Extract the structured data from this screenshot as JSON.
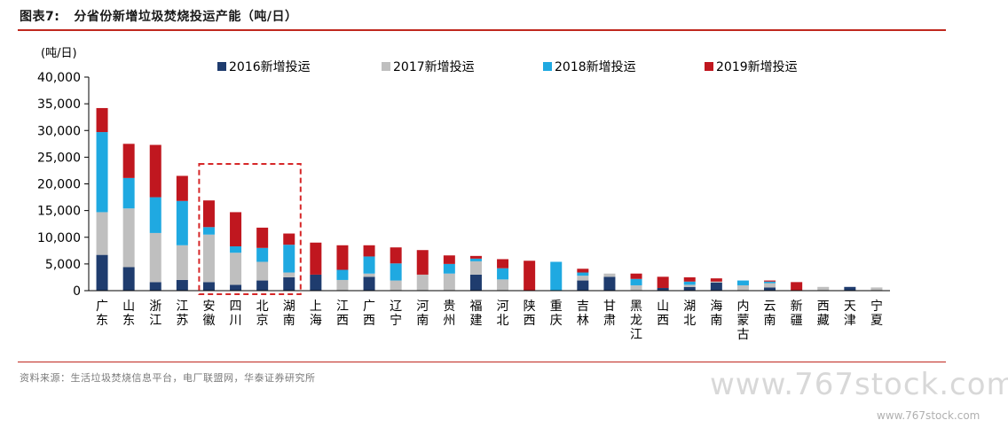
{
  "header": {
    "figure_label": "图表7:",
    "figure_title": "分省份新增垃圾焚烧投运产能（吨/日）"
  },
  "source_text": "资料来源：生活垃圾焚烧信息平台，电厂联盟网，华泰证券研究所",
  "watermark": {
    "main": "www.767stock.com",
    "small": "www.767stock.com"
  },
  "chart_data": {
    "type": "bar",
    "stacked": true,
    "unit_label": "(吨/日)",
    "ylim": [
      0,
      40000
    ],
    "yticks": [
      "0",
      "5,000",
      "10,000",
      "15,000",
      "20,000",
      "25,000",
      "30,000",
      "35,000",
      "40,000"
    ],
    "legend_position": "top",
    "highlight_box": {
      "from_category": "安徽",
      "to_category": "湖南",
      "style": "dashed",
      "color": "#d62728"
    },
    "categories": [
      "广东",
      "山东",
      "浙江",
      "江苏",
      "安徽",
      "四川",
      "北京",
      "湖南",
      "上海",
      "江西",
      "广西",
      "辽宁",
      "河南",
      "贵州",
      "福建",
      "河北",
      "陕西",
      "重庆",
      "吉林",
      "甘肃",
      "黑龙江",
      "山西",
      "湖北",
      "海南",
      "内蒙古",
      "云南",
      "新疆",
      "西藏",
      "天津",
      "宁夏"
    ],
    "series": [
      {
        "name": "2016新增投运",
        "color": "#1f3c6e",
        "values": [
          6700,
          4400,
          1600,
          2000,
          1600,
          1100,
          1900,
          2500,
          3000,
          0,
          2600,
          0,
          0,
          0,
          3000,
          0,
          0,
          0,
          1900,
          2600,
          0,
          500,
          700,
          1500,
          0,
          600,
          0,
          0,
          700,
          0
        ]
      },
      {
        "name": "2017新增投运",
        "color": "#bfbfbf",
        "values": [
          8000,
          11000,
          9200,
          6500,
          8900,
          6000,
          3500,
          900,
          0,
          2000,
          600,
          1900,
          3000,
          3200,
          2500,
          2100,
          0,
          0,
          900,
          600,
          1000,
          0,
          400,
          200,
          1000,
          800,
          0,
          700,
          0,
          600
        ]
      },
      {
        "name": "2018新增投运",
        "color": "#1fa9e1",
        "values": [
          15000,
          5700,
          6700,
          8300,
          1400,
          1200,
          2600,
          5200,
          0,
          1900,
          3200,
          3200,
          0,
          1800,
          500,
          2100,
          0,
          5400,
          600,
          0,
          1200,
          0,
          600,
          0,
          900,
          300,
          0,
          0,
          0,
          0
        ]
      },
      {
        "name": "2019新增投运",
        "color": "#c0171f",
        "values": [
          4500,
          6400,
          9800,
          4700,
          5000,
          6400,
          3800,
          2100,
          6000,
          4600,
          2100,
          3000,
          4600,
          1600,
          500,
          1700,
          5600,
          0,
          700,
          0,
          1000,
          2100,
          800,
          600,
          0,
          200,
          1600,
          0,
          0,
          0
        ]
      }
    ]
  }
}
